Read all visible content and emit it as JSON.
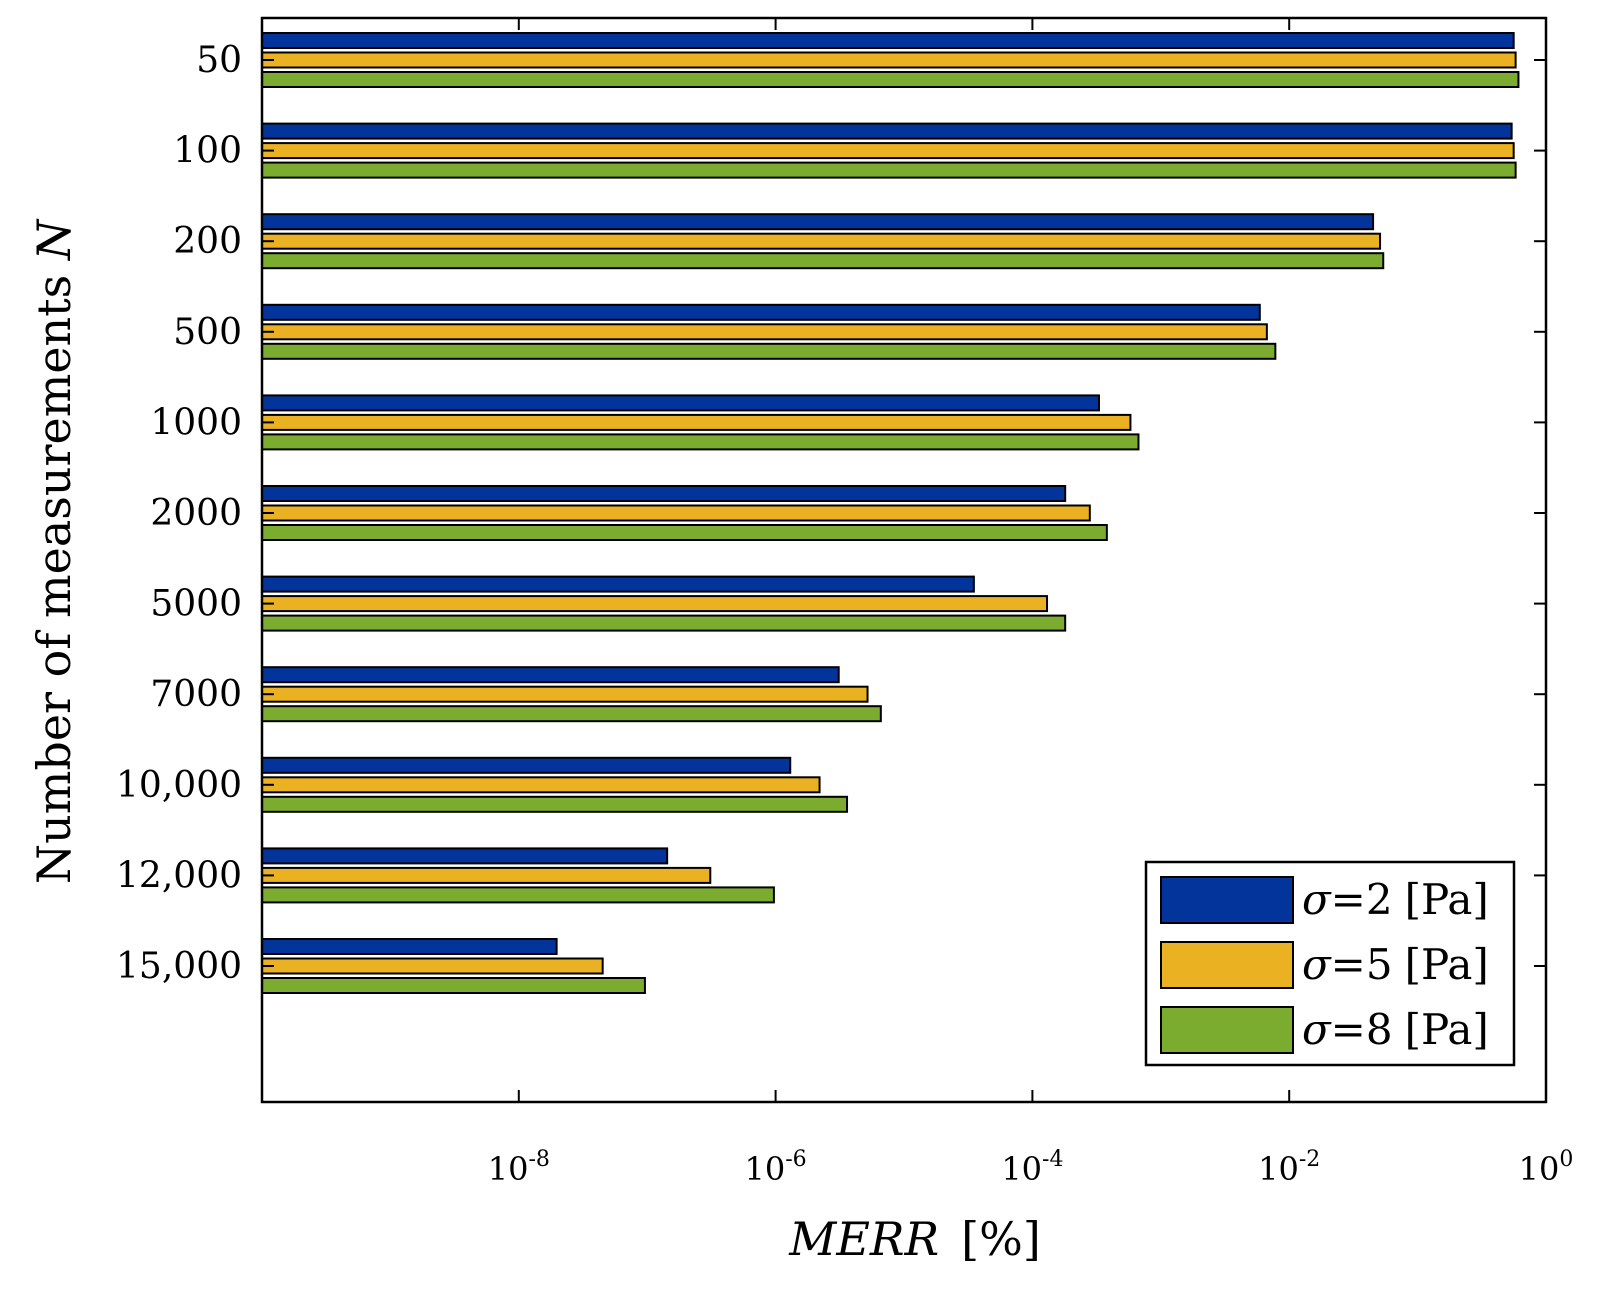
{
  "chart_data": {
    "type": "bar",
    "orientation": "horizontal",
    "x_scale": "log",
    "xlim": [
      1e-10,
      1
    ],
    "xticks": [
      {
        "value": 1e-08,
        "base": "10",
        "exp": "-8"
      },
      {
        "value": 1e-06,
        "base": "10",
        "exp": "-6"
      },
      {
        "value": 0.0001,
        "base": "10",
        "exp": "-4"
      },
      {
        "value": 0.01,
        "base": "10",
        "exp": "-2"
      },
      {
        "value": 1,
        "base": "10",
        "exp": "0"
      }
    ],
    "categories": [
      "50",
      "100",
      "200",
      "500",
      "1000",
      "2000",
      "5000",
      "7000",
      "10,000",
      "12,000",
      "15,000"
    ],
    "series": [
      {
        "name": "σ=2 [Pa]",
        "sigma": "2",
        "color": "#02349b",
        "values": [
          0.56,
          0.54,
          0.045,
          0.0059,
          0.00033,
          0.00018,
          3.5e-05,
          3.1e-06,
          1.3e-06,
          1.43e-07,
          1.97e-08
        ]
      },
      {
        "name": "σ=5 [Pa]",
        "sigma": "5",
        "color": "#eab222",
        "values": [
          0.58,
          0.56,
          0.051,
          0.0067,
          0.00058,
          0.00028,
          0.00013,
          5.2e-06,
          2.2e-06,
          3.1e-07,
          4.5e-08
        ]
      },
      {
        "name": "σ=8 [Pa]",
        "sigma": "8",
        "color": "#7bac30",
        "values": [
          0.61,
          0.58,
          0.054,
          0.0078,
          0.00067,
          0.00038,
          0.00018,
          6.6e-06,
          3.6e-06,
          9.7e-07,
          9.6e-08
        ]
      }
    ],
    "ylabel": {
      "text": "Number of measurements ",
      "var": "N"
    },
    "xlabel": {
      "var": "MERR",
      "unit": "[%]"
    },
    "legend": {
      "position": "bottom-right",
      "entries": [
        {
          "symbol": "σ",
          "eq": "=2",
          "unit": "[Pa]"
        },
        {
          "symbol": "σ",
          "eq": "=5",
          "unit": "[Pa]"
        },
        {
          "symbol": "σ",
          "eq": "=8",
          "unit": "[Pa]"
        }
      ]
    }
  }
}
